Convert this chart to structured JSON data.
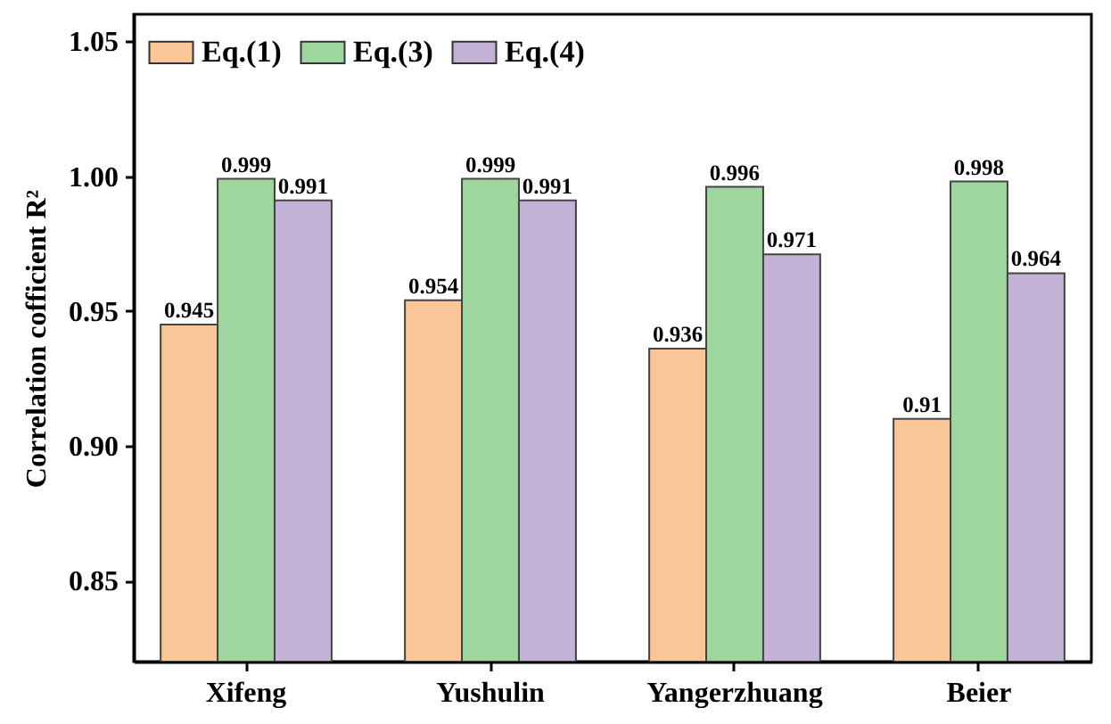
{
  "chart_data": {
    "type": "bar",
    "ylabel": "Correlation cofficient R²",
    "categories": [
      "Xifeng",
      "Yushulin",
      "Yangerzhuang",
      "Beier"
    ],
    "series": [
      {
        "name": "Eq.(1)",
        "color": "#f9c697",
        "values": [
          0.945,
          0.954,
          0.936,
          0.91
        ]
      },
      {
        "name": "Eq.(3)",
        "color": "#9ed69d",
        "values": [
          0.999,
          0.999,
          0.996,
          0.998
        ]
      },
      {
        "name": "Eq.(4)",
        "color": "#c3b1d6",
        "values": [
          0.991,
          0.991,
          0.971,
          0.964
        ]
      }
    ],
    "ylim": [
      0.82,
      1.06
    ],
    "yticks": [
      {
        "value": 0.85,
        "label": "0.85"
      },
      {
        "value": 0.9,
        "label": "0.90"
      },
      {
        "value": 0.95,
        "label": "0.95"
      },
      {
        "value": 1.0,
        "label": "1.00"
      },
      {
        "value": 1.05,
        "label": "1.05"
      }
    ],
    "data_labels": true,
    "legend": "top left",
    "grid": false
  }
}
